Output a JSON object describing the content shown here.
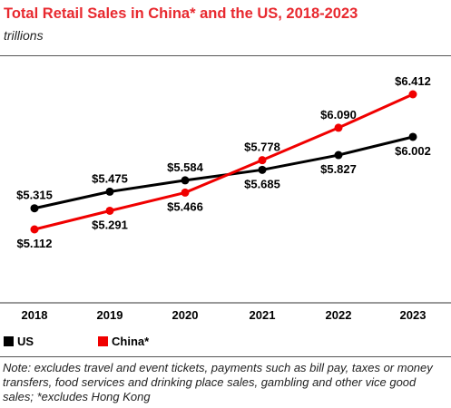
{
  "title": "Total Retail Sales in China* and the US, 2018-2023",
  "subtitle": "trillions",
  "note": "Note: excludes travel and event tickets, payments such as bill pay, taxes or money transfers, food services and drinking place sales, gambling and other vice good sales; *excludes Hong Kong",
  "chart_data": {
    "type": "line",
    "title": "Total Retail Sales in China* and the US, 2018-2023",
    "subtitle": "trillions",
    "categories": [
      "2018",
      "2019",
      "2020",
      "2021",
      "2022",
      "2023"
    ],
    "series": [
      {
        "name": "US",
        "color": "#000000",
        "values": [
          5.315,
          5.475,
          5.584,
          5.685,
          5.827,
          6.002
        ],
        "labels": [
          "$5.315",
          "$5.475",
          "$5.584",
          "$5.685",
          "$5.827",
          "$6.002"
        ],
        "label_pos": [
          "above",
          "above",
          "above",
          "below",
          "below",
          "below"
        ]
      },
      {
        "name": "China*",
        "color": "#f00000",
        "values": [
          5.112,
          5.291,
          5.466,
          5.778,
          6.09,
          6.412
        ],
        "labels": [
          "$5.112",
          "$5.291",
          "$5.466",
          "$5.778",
          "$6.090",
          "$6.412"
        ],
        "label_pos": [
          "below",
          "below",
          "below",
          "above",
          "above",
          "above"
        ]
      }
    ],
    "grid": false,
    "legend_position": "bottom-left"
  }
}
